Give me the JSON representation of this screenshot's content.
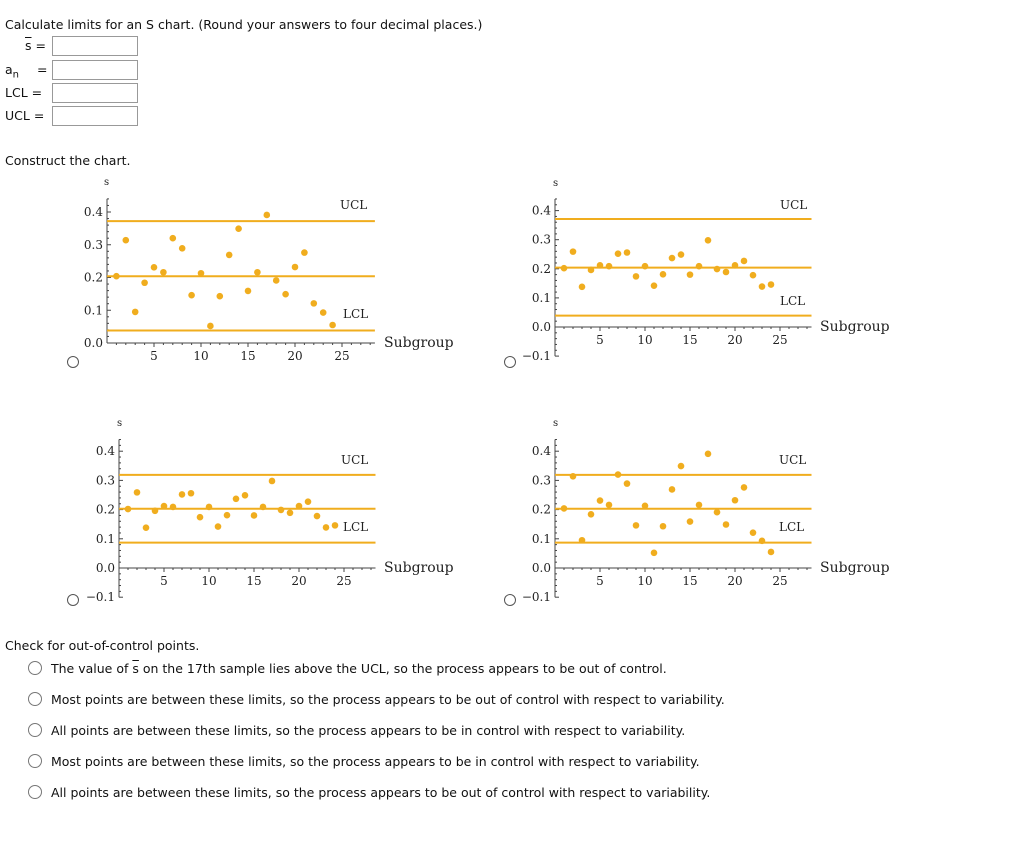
{
  "question": {
    "instruction": "Calculate limits for an S chart. (Round your answers to four decimal places.)",
    "fields": [
      {
        "label": "s",
        "overline": true,
        "eq": "=",
        "value": ""
      },
      {
        "label": "a",
        "sub": "n",
        "eq": "=",
        "value": ""
      },
      {
        "label": "LCL",
        "eq": "=",
        "value": ""
      },
      {
        "label": "UCL",
        "eq": "=",
        "value": ""
      }
    ],
    "construct_label": "Construct the chart."
  },
  "chart_data": [
    {
      "type": "scatter",
      "ylabel": "s",
      "xlabel": "Subgroup",
      "ylim": [
        0,
        0.44
      ],
      "xlim": [
        0,
        28.5
      ],
      "ytick_labels": [
        "0.0",
        "0.1",
        "0.2",
        "0.3",
        "0.4"
      ],
      "xtick_labels": [
        "5",
        "10",
        "15",
        "20",
        "25"
      ],
      "center": 0.204,
      "ucl": 0.372,
      "lcl": 0.038,
      "ucl_label": "UCL",
      "lcl_label": "LCL",
      "color": "#f0ad1e",
      "x": [
        1,
        2,
        3,
        4,
        5,
        6,
        7,
        8,
        9,
        10,
        11,
        12,
        13,
        14,
        15,
        16,
        17,
        18,
        19,
        20,
        21,
        22,
        23,
        24
      ],
      "values": [
        0.204,
        0.314,
        0.095,
        0.184,
        0.231,
        0.216,
        0.32,
        0.289,
        0.146,
        0.213,
        0.052,
        0.143,
        0.269,
        0.349,
        0.159,
        0.216,
        0.391,
        0.191,
        0.149,
        0.232,
        0.276,
        0.121,
        0.093,
        0.055
      ]
    },
    {
      "type": "scatter",
      "ylabel": "s",
      "xlabel": "Subgroup",
      "ylim": [
        -0.1,
        0.44
      ],
      "xlim": [
        0,
        28.5
      ],
      "ytick_labels": [
        "−0.1",
        "0.0",
        "0.1",
        "0.2",
        "0.3",
        "0.4"
      ],
      "xtick_labels": [
        "5",
        "10",
        "15",
        "20",
        "25"
      ],
      "center": 0.204,
      "ucl": 0.371,
      "lcl": 0.039,
      "ucl_label": "UCL",
      "lcl_label": "LCL",
      "color": "#f0ad1e",
      "x": [
        1,
        2,
        3,
        4,
        5,
        6,
        7,
        8,
        9,
        10,
        11,
        12,
        13,
        14,
        15,
        16,
        17,
        18,
        19,
        20,
        21,
        22,
        23,
        24
      ],
      "values": [
        0.202,
        0.259,
        0.138,
        0.196,
        0.212,
        0.209,
        0.252,
        0.256,
        0.174,
        0.209,
        0.142,
        0.181,
        0.237,
        0.249,
        0.18,
        0.209,
        0.298,
        0.199,
        0.189,
        0.212,
        0.227,
        0.178,
        0.139,
        0.146
      ]
    },
    {
      "type": "scatter",
      "ylabel": "s",
      "xlabel": "Subgroup",
      "ylim": [
        -0.1,
        0.44
      ],
      "xlim": [
        0,
        28.5
      ],
      "ytick_labels": [
        "−0.1",
        "0.0",
        "0.1",
        "0.2",
        "0.3",
        "0.4"
      ],
      "xtick_labels": [
        "5",
        "10",
        "15",
        "20",
        "25"
      ],
      "center": 0.203,
      "ucl": 0.319,
      "lcl": 0.087,
      "ucl_label": "UCL",
      "lcl_label": "LCL",
      "color": "#f0ad1e",
      "x": [
        1,
        2,
        3,
        4,
        5,
        6,
        7,
        8,
        9,
        10,
        11,
        12,
        13,
        14,
        15,
        16,
        17,
        18,
        19,
        20,
        21,
        22,
        23,
        24
      ],
      "values": [
        0.202,
        0.259,
        0.138,
        0.196,
        0.212,
        0.209,
        0.252,
        0.256,
        0.174,
        0.209,
        0.142,
        0.181,
        0.237,
        0.249,
        0.18,
        0.209,
        0.298,
        0.199,
        0.189,
        0.212,
        0.227,
        0.178,
        0.139,
        0.146
      ]
    },
    {
      "type": "scatter",
      "ylabel": "s",
      "xlabel": "Subgroup",
      "ylim": [
        -0.1,
        0.44
      ],
      "xlim": [
        0,
        28.5
      ],
      "ytick_labels": [
        "−0.1",
        "0.0",
        "0.1",
        "0.2",
        "0.3",
        "0.4"
      ],
      "xtick_labels": [
        "5",
        "10",
        "15",
        "20",
        "25"
      ],
      "center": 0.203,
      "ucl": 0.319,
      "lcl": 0.087,
      "ucl_label": "UCL",
      "lcl_label": "LCL",
      "color": "#f0ad1e",
      "x": [
        1,
        2,
        3,
        4,
        5,
        6,
        7,
        8,
        9,
        10,
        11,
        12,
        13,
        14,
        15,
        16,
        17,
        18,
        19,
        20,
        21,
        22,
        23,
        24
      ],
      "values": [
        0.204,
        0.314,
        0.095,
        0.184,
        0.231,
        0.216,
        0.32,
        0.289,
        0.146,
        0.213,
        0.052,
        0.143,
        0.269,
        0.349,
        0.159,
        0.216,
        0.391,
        0.191,
        0.149,
        0.232,
        0.276,
        0.121,
        0.093,
        0.055
      ]
    }
  ],
  "check": {
    "heading": "Check for out-of-control points.",
    "option1": {
      "prefix": "The value of ",
      "symbol": "s",
      "suffix": " on the 17th sample lies above the UCL, so the process appears to be out of control."
    },
    "options": [
      "Most points are between these limits, so the process appears to be out of control with respect to variability.",
      "All points are between these limits, so the process appears to be in control with respect to variability.",
      "Most points are between these limits, so the process appears to be in control with respect to variability.",
      "All points are between these limits, so the process appears to be out of control with respect to variability."
    ]
  }
}
